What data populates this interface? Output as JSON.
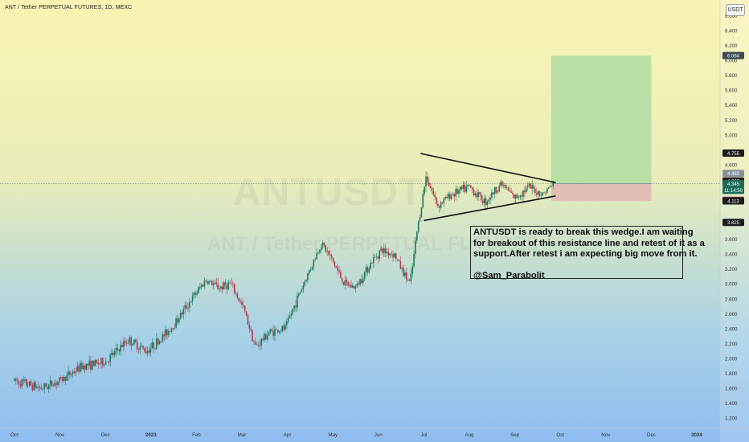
{
  "header": {
    "title": "ANT / Tether PERPETUAL FUTURES, 1D, MEXC",
    "currency": "USDT"
  },
  "watermark": {
    "symbol": "ANTUSDT",
    "subtitle": "ANT / Tether PERPETUAL FUTURES"
  },
  "annotation": {
    "lines": [
      "ANTUSDT is ready to break this wedge.I am waiting",
      "for breakout of this resistance line and retest of it as a",
      "support.After retest i am expecting big move from it."
    ],
    "author": "@Sam_Parabolit"
  },
  "colors": {
    "up": "#1b7a5c",
    "down": "#b23a4b",
    "wedge": "#111111",
    "target_zone": "#a8d9a0",
    "stop_zone": "#e0b3b3",
    "price_line": "#5b8a7f"
  },
  "chart_data": {
    "type": "candlestick",
    "x_ticks": [
      "Oct",
      "Nov",
      "Dec",
      "2023",
      "Feb",
      "Mar",
      "Apr",
      "May",
      "Jun",
      "Jul",
      "Aug",
      "Sep",
      "Oct",
      "Nov",
      "Dec",
      "2024"
    ],
    "y_ticks": [
      "1.200",
      "1.400",
      "1.600",
      "1.800",
      "2.000",
      "2.200",
      "2.400",
      "2.600",
      "2.800",
      "3.000",
      "3.200",
      "3.400",
      "3.600",
      "4.600",
      "5.000",
      "5.200",
      "5.400",
      "5.600",
      "5.800",
      "6.000",
      "6.200",
      "6.400",
      "6.600"
    ],
    "ylim": [
      1.1,
      6.65
    ],
    "price_labels": [
      {
        "text": "6.064",
        "value": 6.064,
        "bg": "#3b4a5a"
      },
      {
        "text": "4.755",
        "value": 4.755,
        "bg": "#1c1c1c"
      },
      {
        "text": "4.483",
        "value": 4.483,
        "bg": "#8a8f9a"
      },
      {
        "text": "4.380",
        "value": 4.38,
        "bg": "#1c1c1c"
      },
      {
        "text": "4.345",
        "value": 4.345,
        "bg": "#1d6b5a"
      },
      {
        "text": "11:14:50",
        "value": 4.255,
        "bg": "#1d6b5a"
      },
      {
        "text": "4.122",
        "value": 4.122,
        "bg": "#b23a4b"
      },
      {
        "text": "4.113",
        "value": 4.113,
        "bg": "#1c1c1c"
      },
      {
        "text": "3.825",
        "value": 3.825,
        "bg": "#1c1c1c"
      }
    ],
    "wedge_upper": {
      "start": {
        "month": 8.93,
        "price": 4.75
      },
      "end": {
        "month": 11.9,
        "price": 4.36
      }
    },
    "wedge_lower": {
      "start": {
        "month": 9.0,
        "price": 3.85
      },
      "end": {
        "month": 11.9,
        "price": 4.18
      }
    },
    "position": {
      "start_month": 11.8,
      "end_month": 14.0,
      "entry": 4.345,
      "target": 6.064,
      "stop": 4.113
    },
    "last_price": 4.345,
    "anchors": [
      {
        "month": 0.0,
        "price": 1.7
      },
      {
        "month": 0.6,
        "price": 1.6
      },
      {
        "month": 1.0,
        "price": 1.7
      },
      {
        "month": 1.5,
        "price": 1.9
      },
      {
        "month": 2.0,
        "price": 1.95
      },
      {
        "month": 2.5,
        "price": 2.25
      },
      {
        "month": 2.9,
        "price": 2.1
      },
      {
        "month": 3.2,
        "price": 2.25
      },
      {
        "month": 3.5,
        "price": 2.45
      },
      {
        "month": 3.9,
        "price": 2.8
      },
      {
        "month": 4.2,
        "price": 3.05
      },
      {
        "month": 4.5,
        "price": 2.95
      },
      {
        "month": 4.75,
        "price": 3.0
      },
      {
        "month": 5.05,
        "price": 2.65
      },
      {
        "month": 5.3,
        "price": 2.15
      },
      {
        "month": 5.6,
        "price": 2.35
      },
      {
        "month": 5.95,
        "price": 2.4
      },
      {
        "month": 6.25,
        "price": 2.85
      },
      {
        "month": 6.5,
        "price": 3.2
      },
      {
        "month": 6.75,
        "price": 3.55
      },
      {
        "month": 7.0,
        "price": 3.3
      },
      {
        "month": 7.25,
        "price": 3.0
      },
      {
        "month": 7.5,
        "price": 2.95
      },
      {
        "month": 7.8,
        "price": 3.25
      },
      {
        "month": 8.05,
        "price": 3.45
      },
      {
        "month": 8.35,
        "price": 3.4
      },
      {
        "month": 8.55,
        "price": 3.15
      },
      {
        "month": 8.7,
        "price": 3.0
      },
      {
        "month": 8.85,
        "price": 3.7
      },
      {
        "month": 9.05,
        "price": 4.45
      },
      {
        "month": 9.3,
        "price": 4.05
      },
      {
        "month": 9.6,
        "price": 4.2
      },
      {
        "month": 10.0,
        "price": 4.3
      },
      {
        "month": 10.35,
        "price": 4.1
      },
      {
        "month": 10.7,
        "price": 4.35
      },
      {
        "month": 11.0,
        "price": 4.15
      },
      {
        "month": 11.3,
        "price": 4.3
      },
      {
        "month": 11.6,
        "price": 4.2
      },
      {
        "month": 11.85,
        "price": 4.345
      }
    ]
  }
}
